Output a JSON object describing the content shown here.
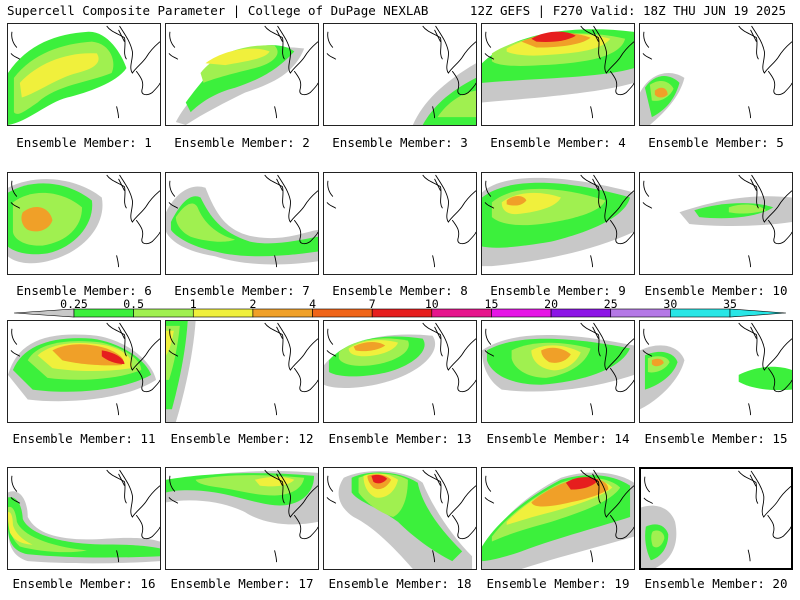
{
  "header": {
    "left": "Supercell Composite Parameter | College of DuPage NEXLAB",
    "right": "12Z GEFS | F270 Valid: 18Z THU JUN 19 2025"
  },
  "members": [
    {
      "label": "Ensemble Member: 1"
    },
    {
      "label": "Ensemble Member: 2"
    },
    {
      "label": "Ensemble Member: 3"
    },
    {
      "label": "Ensemble Member: 4"
    },
    {
      "label": "Ensemble Member: 5"
    },
    {
      "label": "Ensemble Member: 6"
    },
    {
      "label": "Ensemble Member: 7"
    },
    {
      "label": "Ensemble Member: 8"
    },
    {
      "label": "Ensemble Member: 9"
    },
    {
      "label": "Ensemble Member: 10"
    },
    {
      "label": "Ensemble Member: 11"
    },
    {
      "label": "Ensemble Member: 12"
    },
    {
      "label": "Ensemble Member: 13"
    },
    {
      "label": "Ensemble Member: 14"
    },
    {
      "label": "Ensemble Member: 15"
    },
    {
      "label": "Ensemble Member: 16"
    },
    {
      "label": "Ensemble Member: 17"
    },
    {
      "label": "Ensemble Member: 18"
    },
    {
      "label": "Ensemble Member: 19"
    },
    {
      "label": "Ensemble Member: 20"
    }
  ],
  "legend": {
    "ticks": [
      "0.25",
      "0.5",
      "1",
      "2",
      "4",
      "7",
      "10",
      "15",
      "20",
      "25",
      "30",
      "35"
    ],
    "colors": [
      "#c8c8c8",
      "#3cf03c",
      "#a0f050",
      "#f0f03c",
      "#f0a028",
      "#f06418",
      "#e61e1e",
      "#e6148c",
      "#e614e6",
      "#8c14e6",
      "#b478e6",
      "#28e6e6"
    ]
  },
  "colors": {
    "light_gray": "#c8c8c8",
    "green": "#3cf03c",
    "light_green": "#a0f050",
    "yellow": "#f0f03c",
    "orange": "#f0a028",
    "red": "#e61e1e",
    "magenta": "#e614e6",
    "purple": "#8c14e6",
    "cyan": "#28e6e6"
  }
}
